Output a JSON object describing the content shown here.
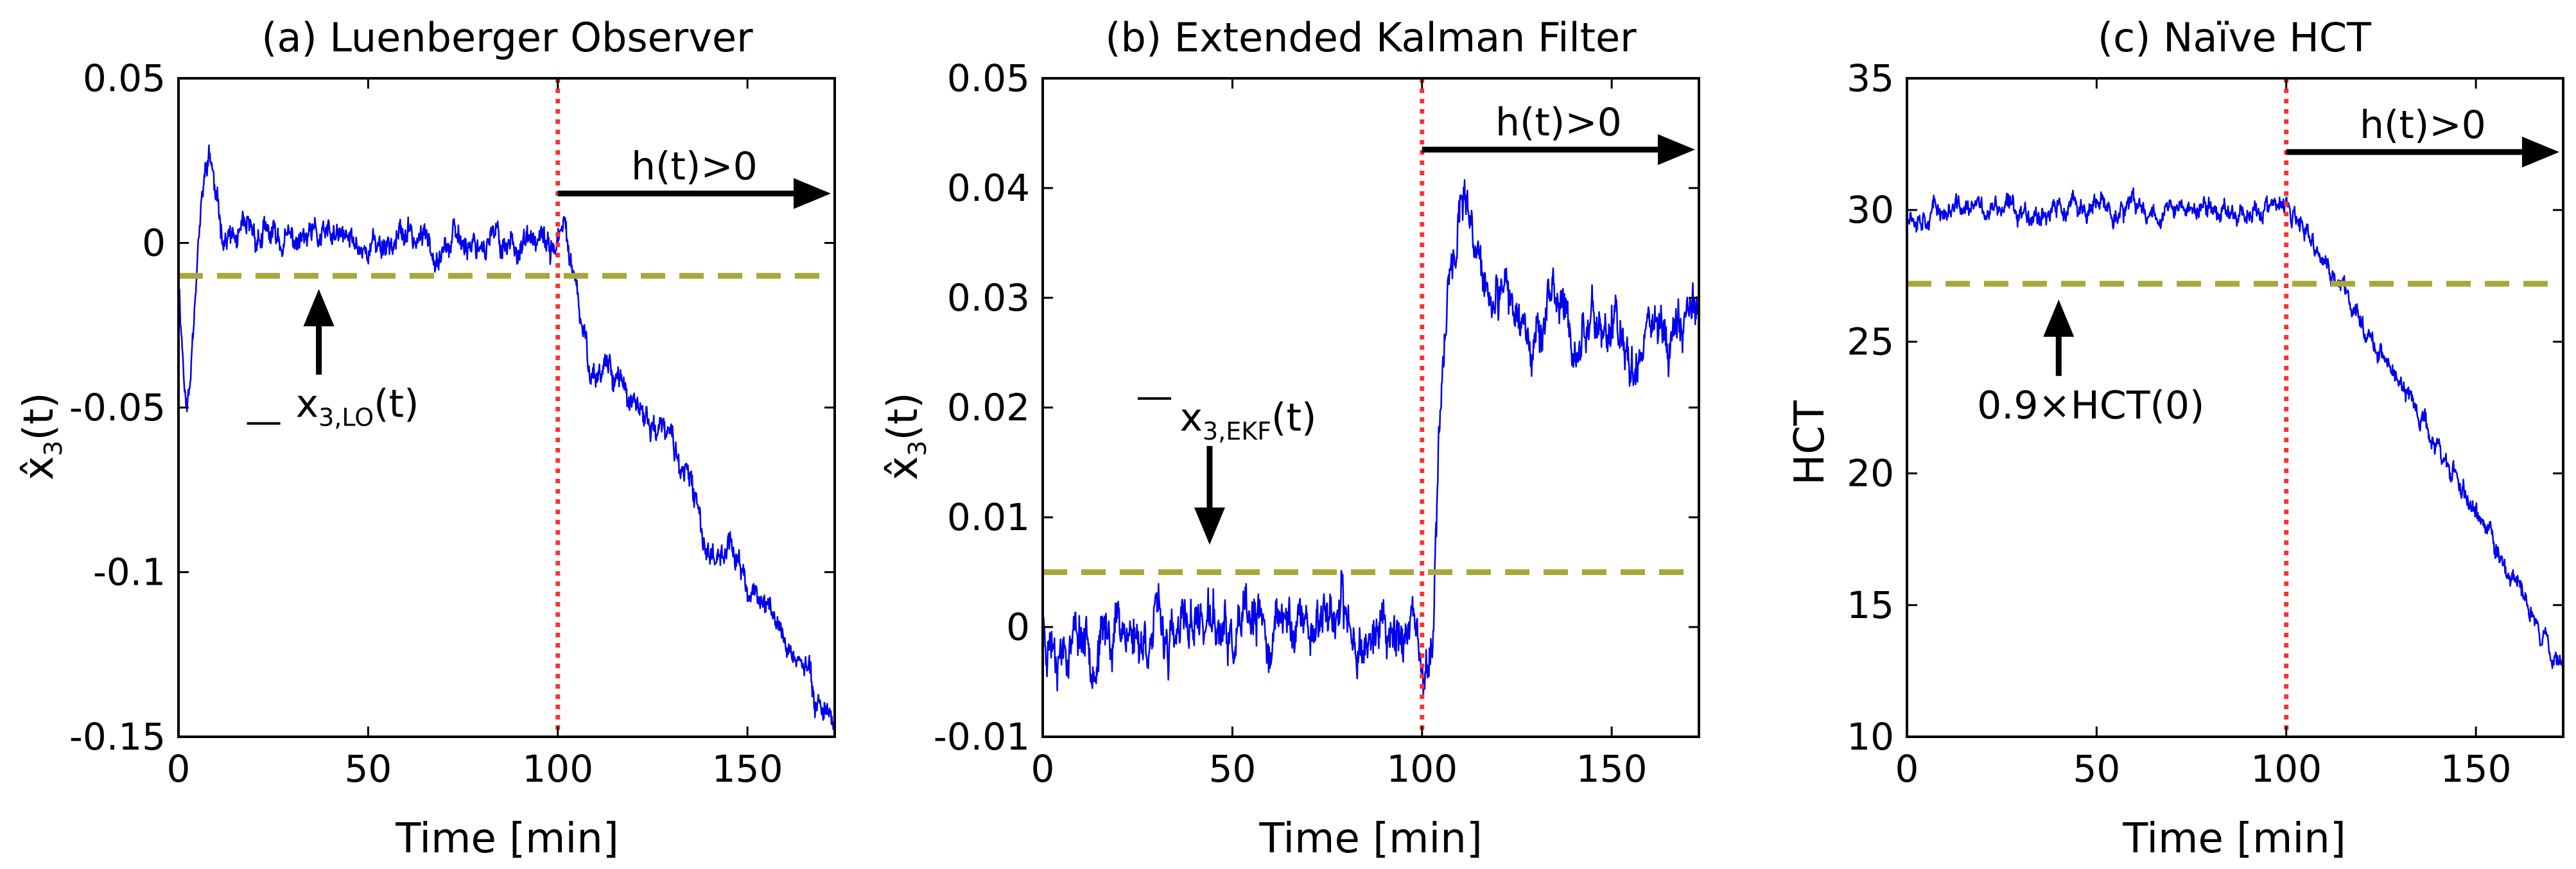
{
  "chart_data": [
    {
      "type": "line",
      "title": "(a) Luenberger Observer",
      "xlabel": "Time [min]",
      "ylabel": {
        "main": "x̂",
        "sub": "3",
        "tail": "(t)"
      },
      "xlim": [
        0,
        173
      ],
      "ylim": [
        -0.15,
        0.05
      ],
      "xticks": [
        0,
        50,
        100,
        150
      ],
      "xtick_labels": [
        "0",
        "50",
        "100",
        "150"
      ],
      "yticks": [
        0.05,
        0,
        -0.05,
        -0.1,
        -0.15
      ],
      "ytick_labels": [
        "0.05",
        "0",
        "-0.05",
        "-0.1",
        "-0.15"
      ],
      "threshold": {
        "y": -0.01,
        "color": "#a8a83a"
      },
      "event": {
        "x": 100,
        "color": "#ff3030"
      },
      "series": [
        {
          "name": "estimate",
          "color": "#0000ee",
          "line_width": 2.5,
          "keypoints": [
            [
              0,
              -0.01
            ],
            [
              1,
              -0.03
            ],
            [
              2,
              -0.05
            ],
            [
              3,
              -0.045
            ],
            [
              4,
              -0.02
            ],
            [
              5,
              0
            ],
            [
              6,
              0.01
            ],
            [
              7,
              0.02
            ],
            [
              8,
              0.026
            ],
            [
              9,
              0.022
            ],
            [
              10,
              0.01
            ],
            [
              12,
              0.003
            ],
            [
              15,
              0.0
            ],
            [
              20,
              0.002
            ],
            [
              30,
              0.0
            ],
            [
              40,
              0.001
            ],
            [
              50,
              -0.001
            ],
            [
              60,
              0.002
            ],
            [
              70,
              0.0
            ],
            [
              80,
              0.001
            ],
            [
              90,
              0.0
            ],
            [
              98,
              -0.002
            ],
            [
              101,
              0.002
            ],
            [
              102,
              0.003
            ],
            [
              104,
              -0.01
            ],
            [
              106,
              -0.025
            ],
            [
              108,
              -0.035
            ],
            [
              110,
              -0.04
            ],
            [
              113,
              -0.035
            ],
            [
              116,
              -0.04
            ],
            [
              120,
              -0.052
            ],
            [
              125,
              -0.055
            ],
            [
              130,
              -0.06
            ],
            [
              135,
              -0.075
            ],
            [
              140,
              -0.095
            ],
            [
              145,
              -0.09
            ],
            [
              150,
              -0.105
            ],
            [
              155,
              -0.11
            ],
            [
              160,
              -0.12
            ],
            [
              165,
              -0.13
            ],
            [
              170,
              -0.14
            ],
            [
              173,
              -0.145
            ]
          ],
          "noise": 0.004,
          "seed": 11
        }
      ],
      "annotations": [
        {
          "text": "h(t)>0",
          "kind": "arrow-right",
          "x_from": 100,
          "x_to": 173,
          "y": 0.015
        },
        {
          "text_main": "x",
          "text_sub": "3,LO",
          "text_tail": "(t)",
          "bar": "under",
          "kind": "arrow-up",
          "x": 37,
          "y_from": -0.04,
          "y_to": -0.014
        }
      ]
    },
    {
      "type": "line",
      "title": "(b) Extended Kalman Filter",
      "xlabel": "Time [min]",
      "ylabel": {
        "main": "x̂",
        "sub": "3",
        "tail": "(t)"
      },
      "xlim": [
        0,
        173
      ],
      "ylim": [
        -0.01,
        0.05
      ],
      "xticks": [
        0,
        50,
        100,
        150
      ],
      "xtick_labels": [
        "0",
        "50",
        "100",
        "150"
      ],
      "yticks": [
        0.05,
        0.04,
        0.03,
        0.02,
        0.01,
        0,
        -0.01
      ],
      "ytick_labels": [
        "0.05",
        "0.04",
        "0.03",
        "0.02",
        "0.01",
        "0",
        "-0.01"
      ],
      "threshold": {
        "y": 0.005,
        "color": "#a8a83a"
      },
      "event": {
        "x": 100,
        "color": "#ff3030"
      },
      "series": [
        {
          "name": "estimate",
          "color": "#0000ee",
          "line_width": 2.5,
          "keypoints": [
            [
              0,
              0.0
            ],
            [
              5,
              -0.001
            ],
            [
              10,
              0.0
            ],
            [
              15,
              -0.002
            ],
            [
              20,
              0.001
            ],
            [
              25,
              -0.001
            ],
            [
              30,
              0.0
            ],
            [
              35,
              -0.002
            ],
            [
              40,
              0.001
            ],
            [
              45,
              0.0
            ],
            [
              50,
              -0.002
            ],
            [
              55,
              0.0
            ],
            [
              60,
              -0.001
            ],
            [
              65,
              0.001
            ],
            [
              70,
              0.0
            ],
            [
              75,
              0.002
            ],
            [
              80,
              0.0
            ],
            [
              85,
              -0.001
            ],
            [
              90,
              0.0
            ],
            [
              95,
              0.0
            ],
            [
              98,
              -0.002
            ],
            [
              100,
              -0.005
            ],
            [
              101,
              -0.006
            ],
            [
              102,
              -0.003
            ],
            [
              103,
              0.003
            ],
            [
              104,
              0.01
            ],
            [
              105,
              0.02
            ],
            [
              106,
              0.028
            ],
            [
              108,
              0.034
            ],
            [
              110,
              0.038
            ],
            [
              112,
              0.036
            ],
            [
              115,
              0.032
            ],
            [
              120,
              0.028
            ],
            [
              125,
              0.03
            ],
            [
              130,
              0.027
            ],
            [
              135,
              0.03
            ],
            [
              140,
              0.026
            ],
            [
              145,
              0.028
            ],
            [
              150,
              0.027
            ],
            [
              155,
              0.025
            ],
            [
              160,
              0.028
            ],
            [
              165,
              0.027
            ],
            [
              170,
              0.028
            ],
            [
              173,
              0.03
            ]
          ],
          "noise": 0.0022,
          "seed": 23
        }
      ],
      "annotations": [
        {
          "text": "h(t)>0",
          "kind": "arrow-right",
          "x_from": 100,
          "x_to": 173,
          "y": 0.0435
        },
        {
          "text_main": "x",
          "text_sub": "3,EKF",
          "text_tail": "(t)",
          "bar": "over",
          "kind": "arrow-down",
          "x": 44,
          "y_from": 0.0165,
          "y_to": 0.0075
        }
      ]
    },
    {
      "type": "line",
      "title": "(c) Naïve HCT",
      "xlabel": "Time [min]",
      "ylabel": {
        "main": "HCT",
        "sub": "",
        "tail": ""
      },
      "xlim": [
        0,
        173
      ],
      "ylim": [
        10,
        35
      ],
      "xticks": [
        0,
        50,
        100,
        150
      ],
      "xtick_labels": [
        "0",
        "50",
        "100",
        "150"
      ],
      "yticks": [
        35,
        30,
        25,
        20,
        15,
        10
      ],
      "ytick_labels": [
        "35",
        "30",
        "25",
        "20",
        "15",
        "10"
      ],
      "threshold": {
        "y": 27.2,
        "color": "#a8a83a"
      },
      "event": {
        "x": 100,
        "color": "#ff3030"
      },
      "series": [
        {
          "name": "HCT",
          "color": "#0000ee",
          "line_width": 2.5,
          "keypoints": [
            [
              0,
              30.0
            ],
            [
              50,
              30.0
            ],
            [
              100,
              30.0
            ],
            [
              110,
              28.0
            ],
            [
              120,
              25.8
            ],
            [
              130,
              23.4
            ],
            [
              140,
              21.0
            ],
            [
              150,
              18.5
            ],
            [
              160,
              15.9
            ],
            [
              173,
              12.6
            ]
          ],
          "noise": 0.38,
          "seed": 37
        }
      ],
      "annotations": [
        {
          "text": "h(t)>0",
          "kind": "arrow-right",
          "x_from": 100,
          "x_to": 173,
          "y": 32.2
        },
        {
          "text_main": "0.9×HCT(0)",
          "text_sub": "",
          "text_tail": "",
          "bar": "none",
          "kind": "arrow-up",
          "x": 40,
          "y_from": 23.7,
          "y_to": 26.6
        }
      ]
    }
  ]
}
